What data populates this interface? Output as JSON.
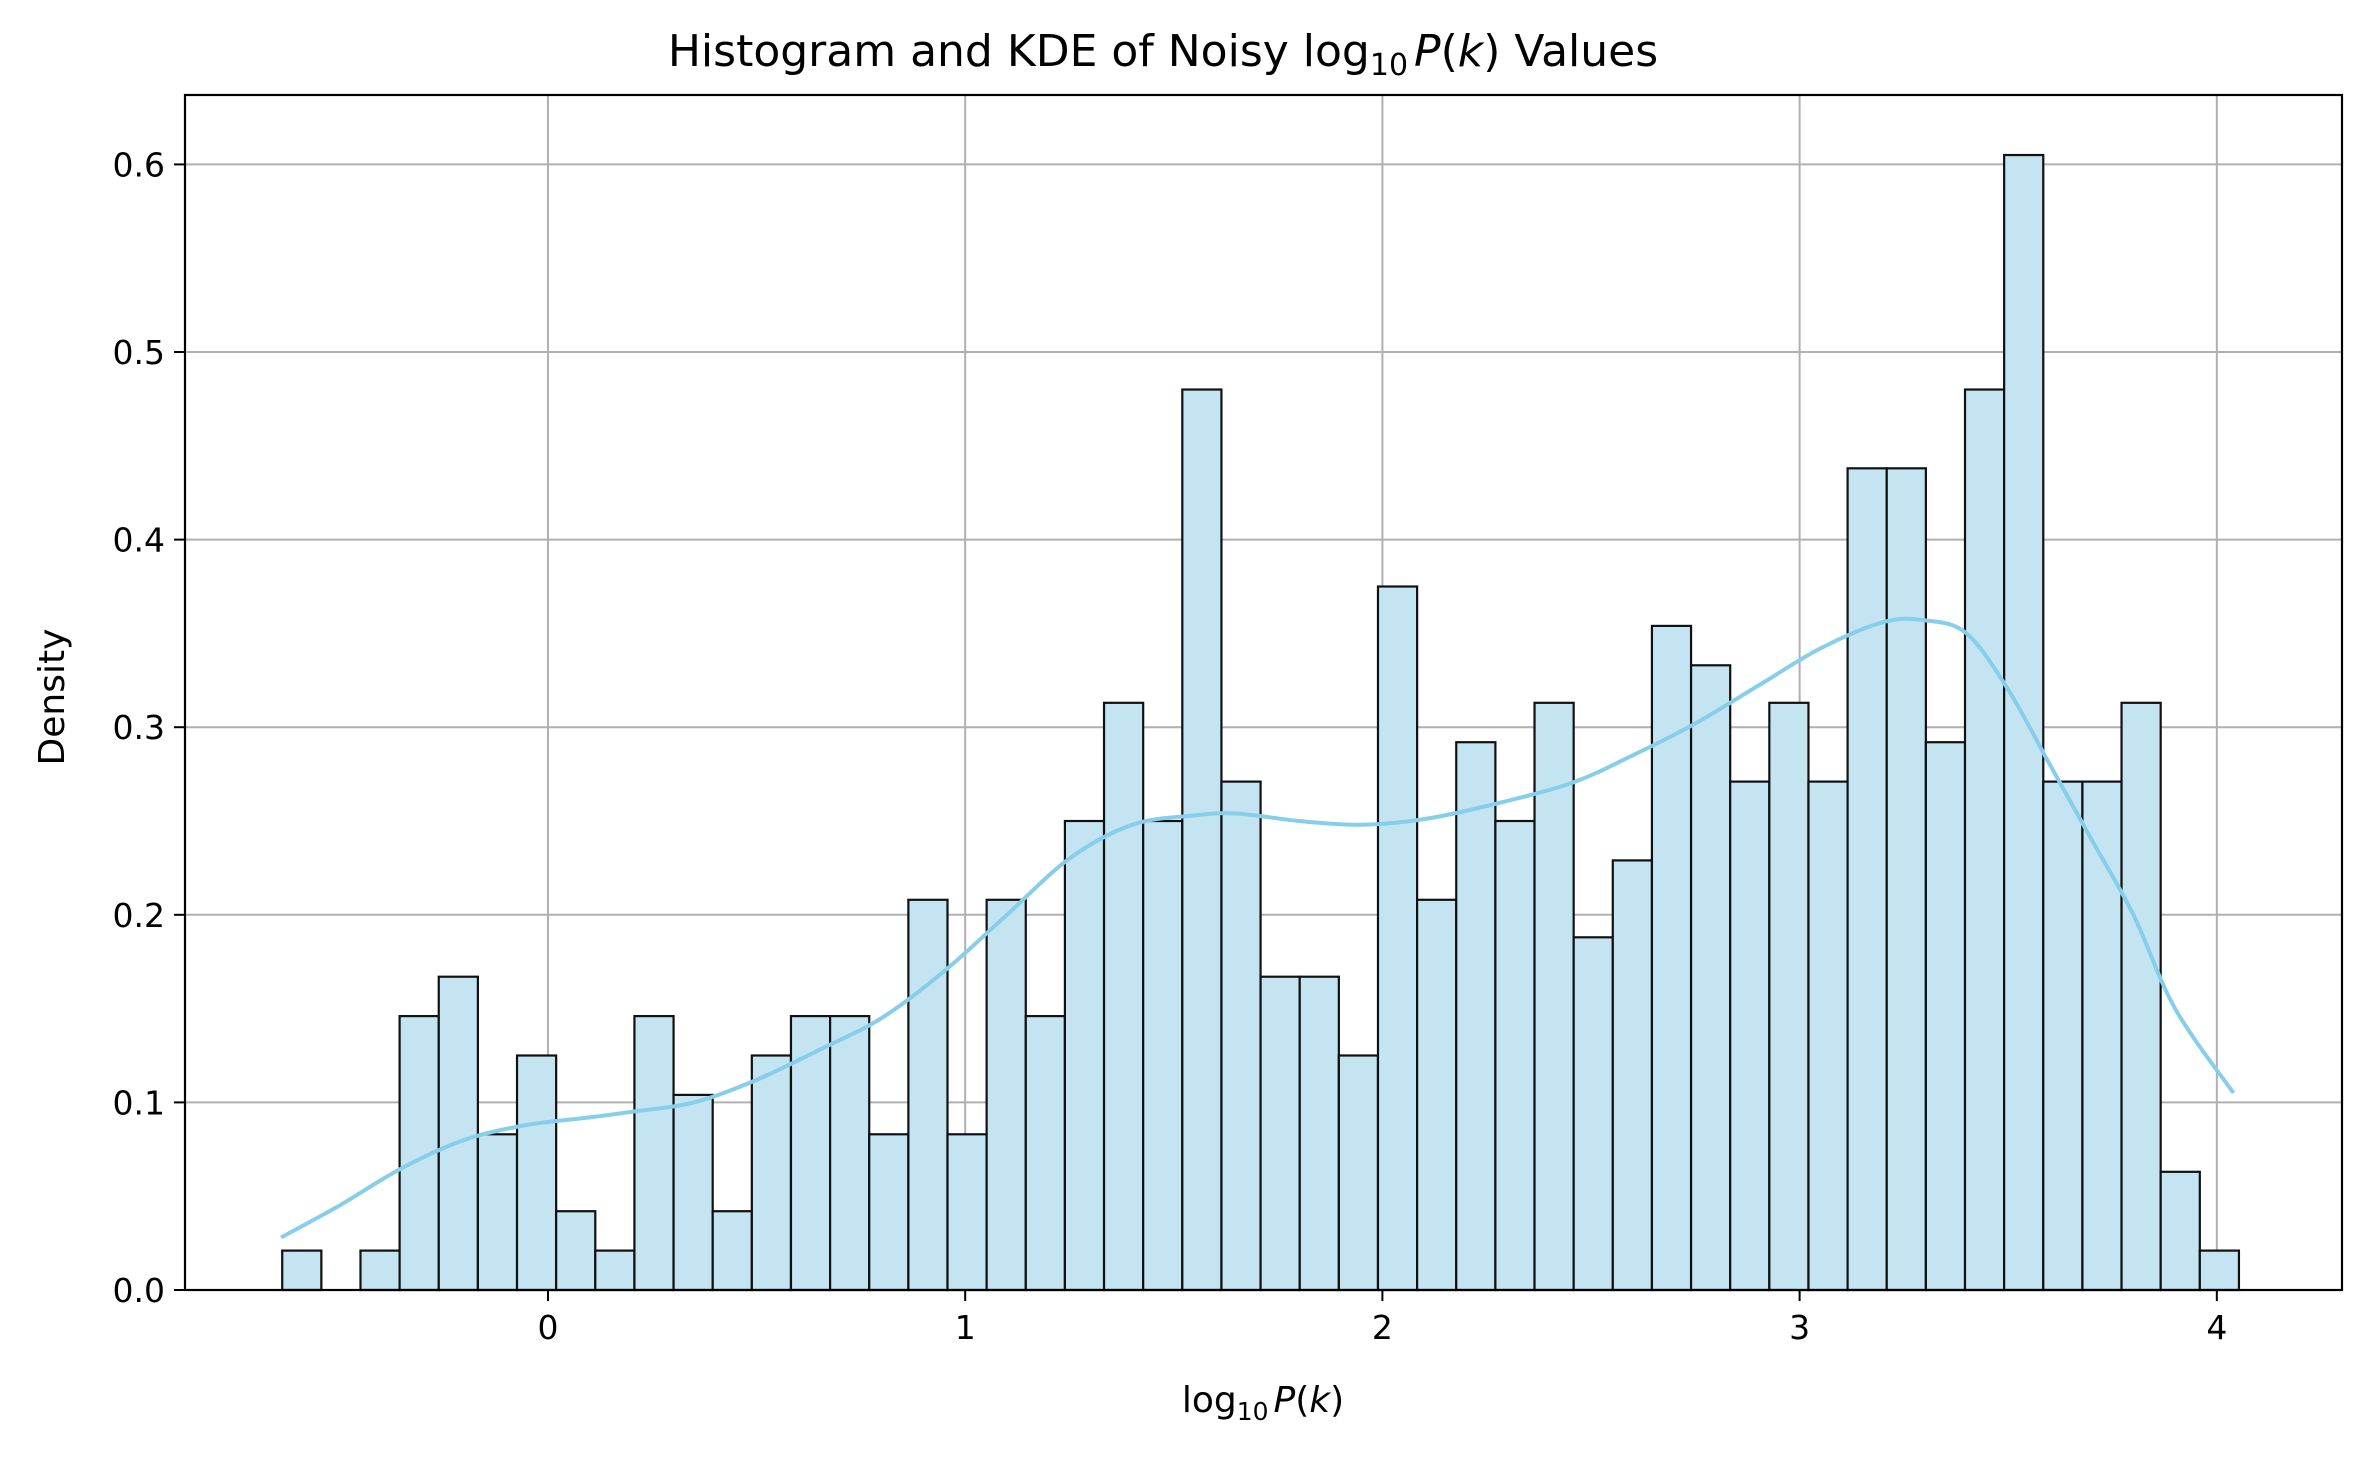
{
  "chart_data": {
    "type": "bar",
    "title": {
      "prefix": "Histogram and KDE of Noisy log",
      "subscript": "10",
      "italic": "P",
      "paren_open": "(",
      "italic_k": "k",
      "suffix": ") Values"
    },
    "xlabel": {
      "prefix": "log",
      "subscript": "10",
      "italic": "P",
      "paren_open": "(",
      "italic_k": "k",
      "suffix": ")"
    },
    "ylabel": "Density",
    "xlim": [
      -0.87,
      4.3
    ],
    "ylim": [
      0.0,
      0.637
    ],
    "x_ticks": [
      0,
      1,
      2,
      3,
      4
    ],
    "x_tick_labels": [
      "0",
      "1",
      "2",
      "3",
      "4"
    ],
    "y_ticks": [
      0.0,
      0.1,
      0.2,
      0.3,
      0.4,
      0.5,
      0.6
    ],
    "y_tick_labels": [
      "0.0",
      "0.1",
      "0.2",
      "0.3",
      "0.4",
      "0.5",
      "0.6"
    ],
    "grid": true,
    "bin_start": -0.637,
    "bin_width": 0.0938,
    "bin_values": [
      0.021,
      0.0,
      0.021,
      0.146,
      0.167,
      0.083,
      0.125,
      0.042,
      0.021,
      0.146,
      0.104,
      0.042,
      0.125,
      0.146,
      0.146,
      0.083,
      0.208,
      0.083,
      0.208,
      0.146,
      0.25,
      0.313,
      0.25,
      0.48,
      0.271,
      0.167,
      0.167,
      0.125,
      0.375,
      0.208,
      0.292,
      0.25,
      0.313,
      0.188,
      0.229,
      0.354,
      0.333,
      0.271,
      0.313,
      0.271,
      0.438,
      0.438,
      0.292,
      0.48,
      0.605,
      0.271,
      0.271,
      0.313,
      0.063,
      0.021
    ],
    "kde": {
      "x": [
        -0.64,
        -0.5,
        -0.35,
        -0.2,
        -0.05,
        0.1,
        0.2,
        0.35,
        0.5,
        0.65,
        0.8,
        0.95,
        1.1,
        1.25,
        1.4,
        1.55,
        1.65,
        1.8,
        1.95,
        2.1,
        2.25,
        2.45,
        2.6,
        2.75,
        2.9,
        3.05,
        3.2,
        3.3,
        3.4,
        3.5,
        3.6,
        3.7,
        3.8,
        3.9,
        4.04
      ],
      "y": [
        0.028,
        0.045,
        0.065,
        0.08,
        0.088,
        0.092,
        0.095,
        0.1,
        0.112,
        0.128,
        0.145,
        0.17,
        0.2,
        0.23,
        0.248,
        0.253,
        0.254,
        0.25,
        0.248,
        0.251,
        0.258,
        0.27,
        0.285,
        0.302,
        0.322,
        0.342,
        0.356,
        0.357,
        0.35,
        0.32,
        0.28,
        0.24,
        0.2,
        0.15,
        0.105
      ]
    },
    "colors": {
      "bar_fill": "#c4e4f2",
      "bar_edge": "#111111",
      "kde_line": "#87ceeb",
      "grid": "#b0b0b0",
      "axes": "#000000"
    }
  }
}
